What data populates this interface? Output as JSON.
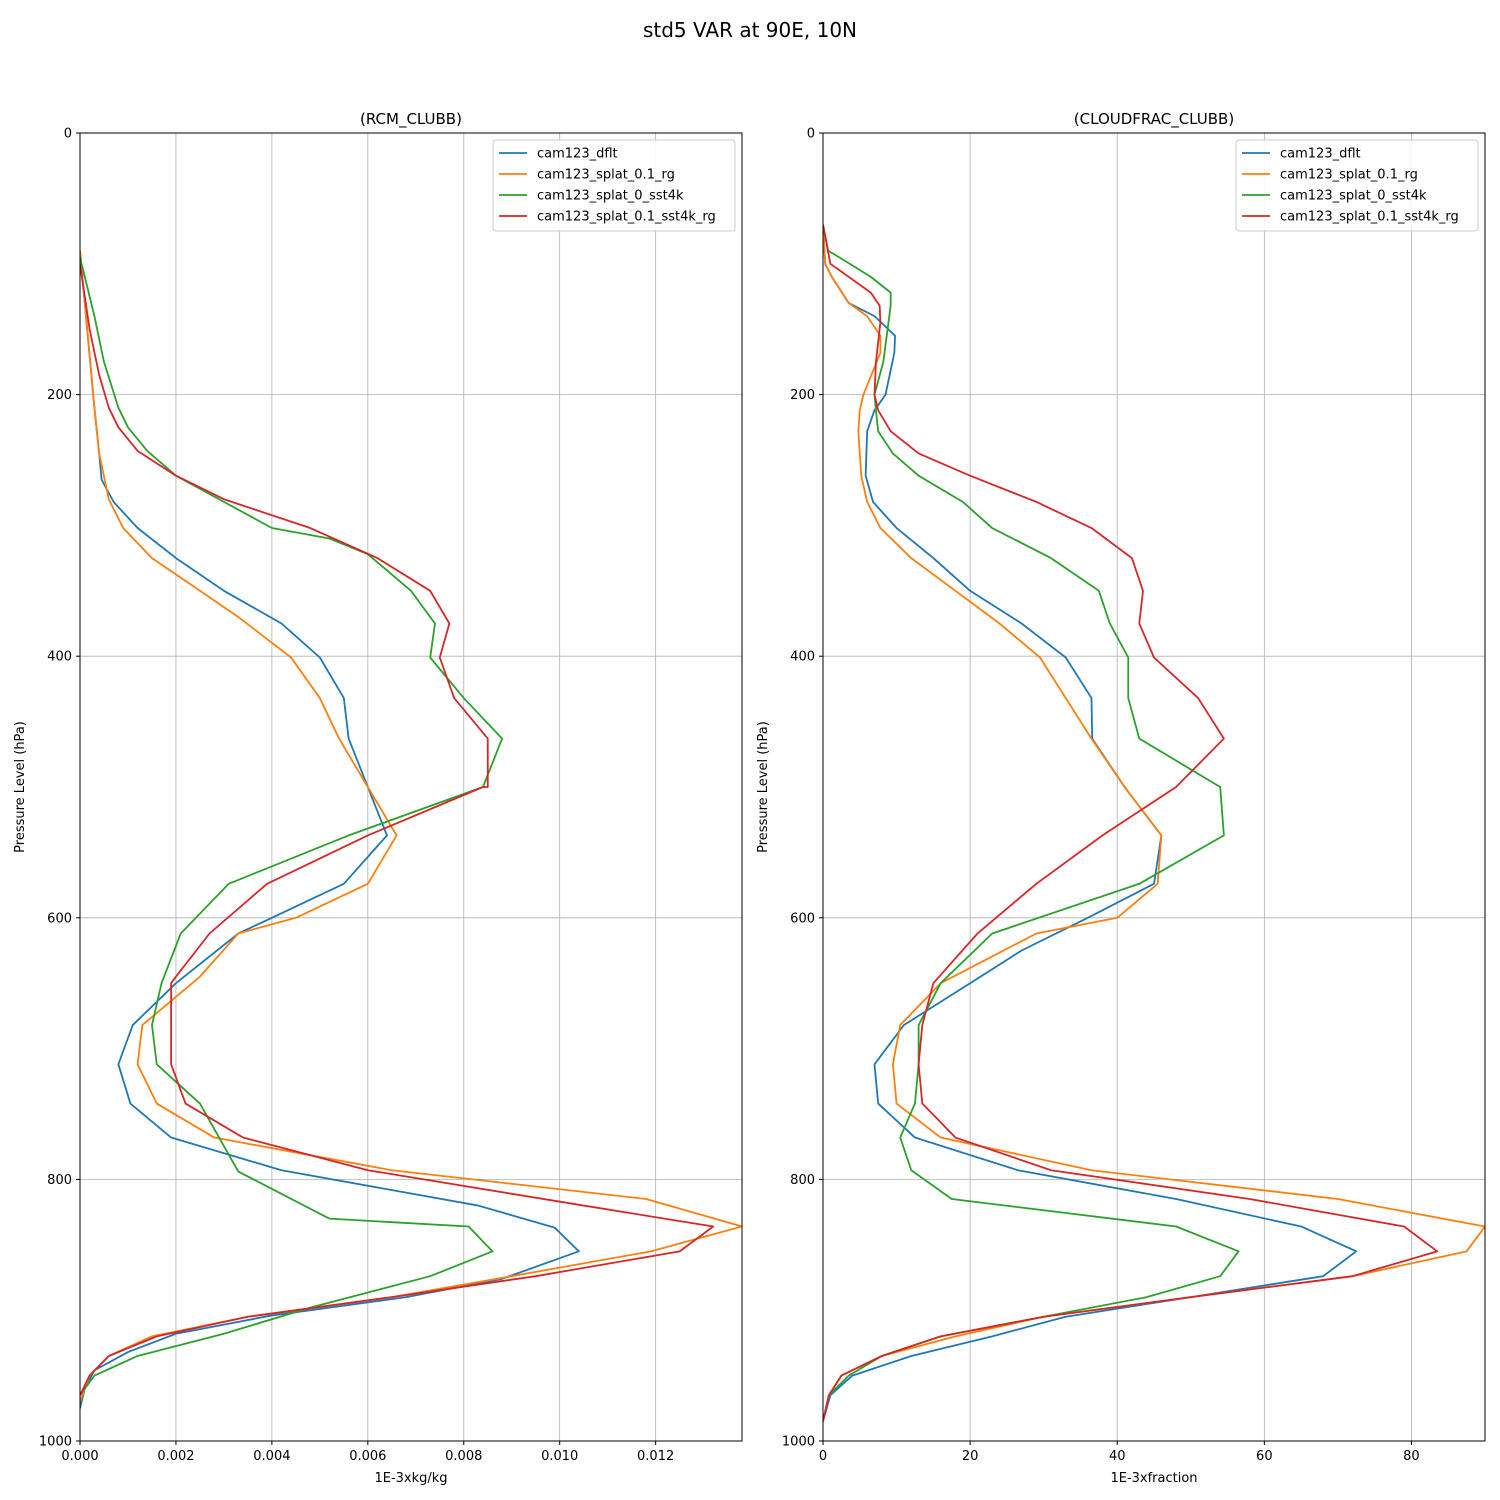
{
  "figure": {
    "title": "std5 VAR at 90E, 10N"
  },
  "chart_data": [
    {
      "type": "line",
      "title": "(RCM_CLUBB)",
      "xlabel": "1E-3xkg/kg",
      "ylabel": "Pressure Level (hPa)",
      "xlim": [
        0,
        0.0138
      ],
      "ylim": [
        1000,
        0
      ],
      "y_inverted": true,
      "grid": true,
      "legend_position": "top-right",
      "xticks": [
        0,
        0.002,
        0.004,
        0.006,
        0.008,
        0.01,
        0.012
      ],
      "xtick_labels": [
        "0.000",
        "0.002",
        "0.004",
        "0.006",
        "0.008",
        "0.010",
        "0.012"
      ],
      "yticks": [
        0,
        200,
        400,
        600,
        800,
        1000
      ],
      "ytick_labels": [
        "0",
        "200",
        "400",
        "600",
        "800",
        "1000"
      ],
      "series": [
        {
          "name": "cam123_dflt",
          "color": "#1f77b4",
          "x": [
            0,
            0.0001,
            0.0002,
            0.0003,
            0.0004,
            0.00045,
            0.0007,
            0.0012,
            0.002,
            0.003,
            0.0042,
            0.005,
            0.0055,
            0.0056,
            0.006,
            0.0064,
            0.0055,
            0.004,
            0.0033,
            0.002,
            0.0011,
            0.0008,
            0.00105,
            0.0019,
            0.0042,
            0.0083,
            0.0099,
            0.0104,
            0.0088,
            0.0068,
            0.004,
            0.002,
            0.001,
            0.0003,
            0.0001,
            0
          ],
          "y": [
            90,
            130,
            170,
            210,
            245,
            265,
            282,
            302,
            325,
            350,
            375,
            401,
            432,
            463,
            500,
            537,
            574,
            600,
            612,
            650,
            682,
            712,
            742,
            768,
            793,
            820,
            837,
            855,
            876,
            890,
            904,
            918,
            932,
            946,
            960,
            975
          ]
        },
        {
          "name": "cam123_splat_0.1_rg",
          "color": "#ff7f0e",
          "x": [
            0,
            0.0001,
            0.0002,
            0.0003,
            0.0004,
            0.0006,
            0.0009,
            0.0015,
            0.0025,
            0.0033,
            0.0044,
            0.005,
            0.0054,
            0.006,
            0.0066,
            0.006,
            0.0045,
            0.0033,
            0.0025,
            0.0013,
            0.0012,
            0.0016,
            0.0028,
            0.0065,
            0.0118,
            0.0138,
            0.0119,
            0.009,
            0.0065,
            0.0035,
            0.0015,
            0.0006,
            0.0002,
            0
          ],
          "y": [
            90,
            130,
            170,
            210,
            245,
            280,
            302,
            325,
            350,
            370,
            401,
            432,
            463,
            500,
            537,
            574,
            600,
            612,
            645,
            682,
            712,
            742,
            768,
            793,
            815,
            836,
            855,
            874,
            890,
            905,
            920,
            935,
            950,
            970
          ]
        },
        {
          "name": "cam123_splat_0_sst4k",
          "color": "#2ca02c",
          "x": [
            0,
            0.0003,
            0.0005,
            0.0008,
            0.001,
            0.0014,
            0.002,
            0.003,
            0.004,
            0.0052,
            0.006,
            0.0069,
            0.0074,
            0.0073,
            0.008,
            0.0088,
            0.0084,
            0.0056,
            0.0031,
            0.0021,
            0.0017,
            0.0015,
            0.0016,
            0.0025,
            0.0033,
            0.0052,
            0.0081,
            0.0086,
            0.0073,
            0.0048,
            0.003,
            0.0012,
            0.0003,
            0
          ],
          "y": [
            95,
            140,
            175,
            210,
            225,
            243,
            262,
            282,
            302,
            310,
            322,
            350,
            375,
            401,
            432,
            463,
            500,
            537,
            574,
            612,
            650,
            682,
            712,
            742,
            794,
            830,
            836,
            855,
            874,
            898,
            918,
            935,
            950,
            965
          ]
        },
        {
          "name": "cam123_splat_0.1_sst4k_rg",
          "color": "#d62728",
          "x": [
            0,
            0.0002,
            0.0004,
            0.0006,
            0.0008,
            0.0012,
            0.002,
            0.003,
            0.0048,
            0.0062,
            0.0073,
            0.0077,
            0.0075,
            0.0078,
            0.0085,
            0.0085,
            0.0084,
            0.006,
            0.0039,
            0.0027,
            0.002,
            0.0019,
            0.0019,
            0.0022,
            0.0034,
            0.006,
            0.0105,
            0.0132,
            0.0125,
            0.0095,
            0.0065,
            0.0035,
            0.0016,
            0.0006,
            0.0002,
            0
          ],
          "y": [
            100,
            150,
            185,
            210,
            225,
            243,
            262,
            280,
            302,
            325,
            350,
            375,
            401,
            432,
            463,
            500,
            500,
            537,
            574,
            612,
            645,
            650,
            712,
            742,
            768,
            793,
            820,
            836,
            855,
            874,
            890,
            905,
            920,
            935,
            950,
            965
          ]
        }
      ]
    },
    {
      "type": "line",
      "title": "(CLOUDFRAC_CLUBB)",
      "xlabel": "1E-3xfraction",
      "ylabel": "Pressure Level (hPa)",
      "xlim": [
        0,
        90
      ],
      "ylim": [
        1000,
        0
      ],
      "y_inverted": true,
      "grid": true,
      "legend_position": "top-right",
      "xticks": [
        0,
        20,
        40,
        60,
        80
      ],
      "xtick_labels": [
        "0",
        "20",
        "40",
        "60",
        "80"
      ],
      "yticks": [
        0,
        200,
        400,
        600,
        800,
        1000
      ],
      "ytick_labels": [
        "0",
        "200",
        "400",
        "600",
        "800",
        "1000"
      ],
      "series": [
        {
          "name": "cam123_dflt",
          "color": "#1f77b4",
          "x": [
            0,
            0.3,
            1.2,
            3.5,
            7,
            9.8,
            9.7,
            8.5,
            7,
            6,
            5.8,
            6.8,
            10,
            15,
            20,
            27,
            33,
            36.5,
            36.6,
            41,
            46,
            45,
            36,
            27,
            20,
            11,
            7,
            7.5,
            12.5,
            26.5,
            48,
            65,
            72.5,
            68,
            50,
            33,
            23,
            12,
            4,
            1,
            0
          ],
          "y": [
            70,
            100,
            110,
            130,
            140,
            155,
            168,
            200,
            212,
            228,
            262,
            282,
            302,
            325,
            350,
            375,
            401,
            432,
            463,
            500,
            537,
            574,
            600,
            625,
            650,
            682,
            712,
            742,
            768,
            793,
            815,
            836,
            855,
            874,
            890,
            905,
            920,
            935,
            950,
            965,
            985
          ]
        },
        {
          "name": "cam123_splat_0.1_rg",
          "color": "#ff7f0e",
          "x": [
            0,
            0.3,
            1.2,
            3.5,
            6,
            7.8,
            7.8,
            5.5,
            5,
            4.8,
            5.2,
            6,
            7.8,
            12,
            18,
            24,
            29.5,
            33,
            36.5,
            41,
            46,
            45.5,
            40,
            29,
            16,
            10.5,
            9.5,
            10,
            16,
            36.5,
            70,
            90,
            87.5,
            72,
            50,
            30,
            18,
            8,
            2.5,
            0.8,
            0
          ],
          "y": [
            70,
            100,
            110,
            130,
            140,
            155,
            168,
            200,
            212,
            228,
            262,
            282,
            302,
            325,
            350,
            375,
            401,
            432,
            463,
            500,
            537,
            574,
            600,
            612,
            650,
            682,
            712,
            742,
            768,
            793,
            815,
            836,
            855,
            874,
            890,
            905,
            920,
            935,
            950,
            965,
            985
          ]
        },
        {
          "name": "cam123_splat_0_sst4k",
          "color": "#2ca02c",
          "x": [
            0,
            0.7,
            2.2,
            6.5,
            9.2,
            9.2,
            8.2,
            7,
            7.2,
            7.5,
            9.5,
            13,
            19,
            23,
            31,
            37.5,
            39,
            41.5,
            41.5,
            43,
            54,
            54.5,
            43,
            23,
            16,
            13,
            13,
            12.5,
            10.5,
            12,
            17.5,
            48,
            56.5,
            54,
            44,
            30,
            16,
            8,
            3.5,
            0.8,
            0
          ],
          "y": [
            70,
            90,
            95,
            110,
            122,
            132,
            175,
            200,
            212,
            228,
            245,
            262,
            282,
            302,
            325,
            350,
            375,
            401,
            432,
            463,
            500,
            537,
            574,
            612,
            650,
            682,
            712,
            742,
            768,
            793,
            815,
            836,
            855,
            874,
            890,
            905,
            920,
            935,
            950,
            965,
            985
          ]
        },
        {
          "name": "cam123_splat_0.1_sst4k_rg",
          "color": "#d62728",
          "x": [
            0,
            1,
            3.5,
            6.5,
            7.7,
            7.8,
            7.2,
            7,
            7.5,
            9.2,
            13,
            20,
            29,
            36.5,
            42,
            43.5,
            43,
            45,
            51,
            54.5,
            48,
            38,
            29,
            21,
            15,
            13.5,
            13,
            13.5,
            18,
            31,
            58,
            79,
            83.5,
            72,
            50,
            30,
            16,
            8,
            2.5,
            0.8,
            0
          ],
          "y": [
            70,
            100,
            110,
            122,
            132,
            145,
            175,
            200,
            212,
            228,
            245,
            262,
            282,
            302,
            325,
            350,
            375,
            401,
            432,
            463,
            500,
            537,
            574,
            612,
            650,
            682,
            712,
            742,
            768,
            793,
            815,
            836,
            855,
            874,
            890,
            905,
            920,
            935,
            950,
            965,
            985
          ]
        }
      ]
    }
  ]
}
